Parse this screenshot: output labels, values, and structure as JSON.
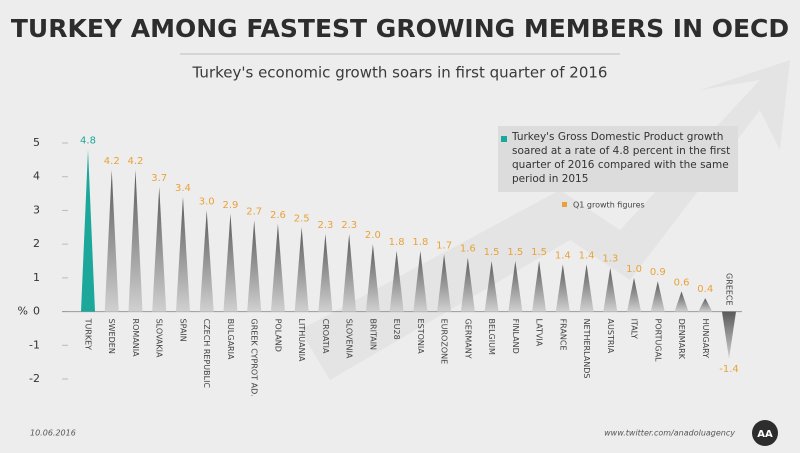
{
  "chart_data": {
    "type": "spike-bar",
    "title": "TURKEY AMONG FASTEST GROWING MEMBERS IN OECD",
    "subtitle": "Turkey's economic growth soars in first quarter of 2016",
    "y_label": "%",
    "categories": [
      "TURKEY",
      "SWEDEN",
      "ROMANIA",
      "SLOVAKIA",
      "SPAIN",
      "CZECH REPUBLIC",
      "BULGARIA",
      "GREEK CYPROT AD.",
      "POLAND",
      "LITHUANIA",
      "CROATIA",
      "SLOVENIA",
      "BRITAIN",
      "EU28",
      "ESTONIA",
      "EUROZONE",
      "GERMANY",
      "BELGIUM",
      "FINLAND",
      "LATVIA",
      "FRANCE",
      "NETHERLANDS",
      "AUSTRIA",
      "ITALY",
      "PORTUGAL",
      "DENMARK",
      "HUNGARY",
      "GREECE"
    ],
    "values": [
      4.8,
      4.2,
      4.2,
      3.7,
      3.4,
      3.0,
      2.9,
      2.7,
      2.6,
      2.5,
      2.3,
      2.3,
      2.0,
      1.8,
      1.8,
      1.7,
      1.6,
      1.5,
      1.5,
      1.5,
      1.4,
      1.4,
      1.3,
      1.0,
      0.9,
      0.6,
      0.4,
      -1.4
    ],
    "value_labels": [
      "4.8",
      "4.2",
      "4.2",
      "3.7",
      "3.4",
      "3.0",
      "2.9",
      "2.7",
      "2.6",
      "2.5",
      "2.3",
      "2.3",
      "2.0",
      "1.8",
      "1.8",
      "1.7",
      "1.6",
      "1.5",
      "1.5",
      "1.5",
      "1.4",
      "1.4",
      "1.3",
      "1.0",
      "0.9",
      "0.6",
      "0.4",
      "-1.4"
    ],
    "color": "#8e8e8e",
    "label_color": "#e9a23b",
    "highlight_color": "#1ba89b",
    "highlight_index": [
      0
    ],
    "ylim": [
      -2,
      5
    ],
    "yticks": [
      -2,
      -1,
      0,
      1,
      2,
      3,
      4,
      5
    ],
    "annotation": [
      "Turkey's Gross Domestic Product growth",
      "soared at a rate of 4.8 percent in the first",
      "quarter of 2016 compared with the same",
      "period in 2015"
    ],
    "legend": "Q1 growth figures",
    "date": "10.06.2016",
    "source": "www.twitter.com/anadoluagency",
    "logo": "AA"
  }
}
